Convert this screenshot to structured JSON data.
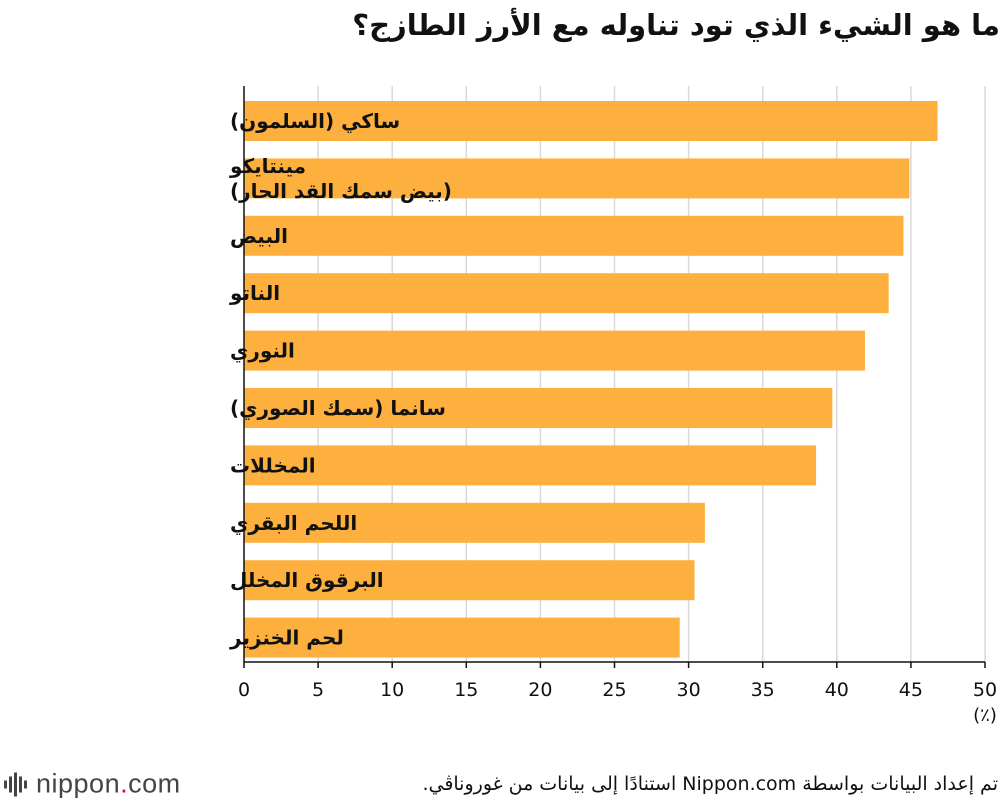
{
  "title": "ما هو الشيء الذي تود تناوله مع الأرز الطازج؟",
  "unit_label": "(٪)",
  "source": "تم إعداد البيانات بواسطة Nippon.com استنادًا إلى بيانات من غوروناڤي.",
  "logo": {
    "name": "nippon",
    "dot": ".",
    "tld": "com"
  },
  "colors": {
    "bar": "#FDB03E",
    "grid": "#d9d9d9",
    "axis": "#111111"
  },
  "chart_data": {
    "type": "bar",
    "orientation": "horizontal",
    "categories": [
      [
        "ساكي (السلمون)"
      ],
      [
        "مينتايكو",
        "(بيض سمك القد الحار)"
      ],
      [
        "البيض"
      ],
      [
        "الناتو"
      ],
      [
        "النوري"
      ],
      [
        "سانما (سمك الصوري)"
      ],
      [
        "المخللات"
      ],
      [
        "اللحم البقري"
      ],
      [
        "البرقوق المخلل"
      ],
      [
        "لحم الخنزير"
      ]
    ],
    "values": [
      46.8,
      44.9,
      44.5,
      43.5,
      41.9,
      39.7,
      38.6,
      31.1,
      30.4,
      29.4
    ],
    "xlim": [
      0,
      50
    ],
    "xticks": [
      "0",
      "5",
      "10",
      "15",
      "20",
      "25",
      "30",
      "35",
      "40",
      "45",
      "50"
    ],
    "grid": true
  }
}
